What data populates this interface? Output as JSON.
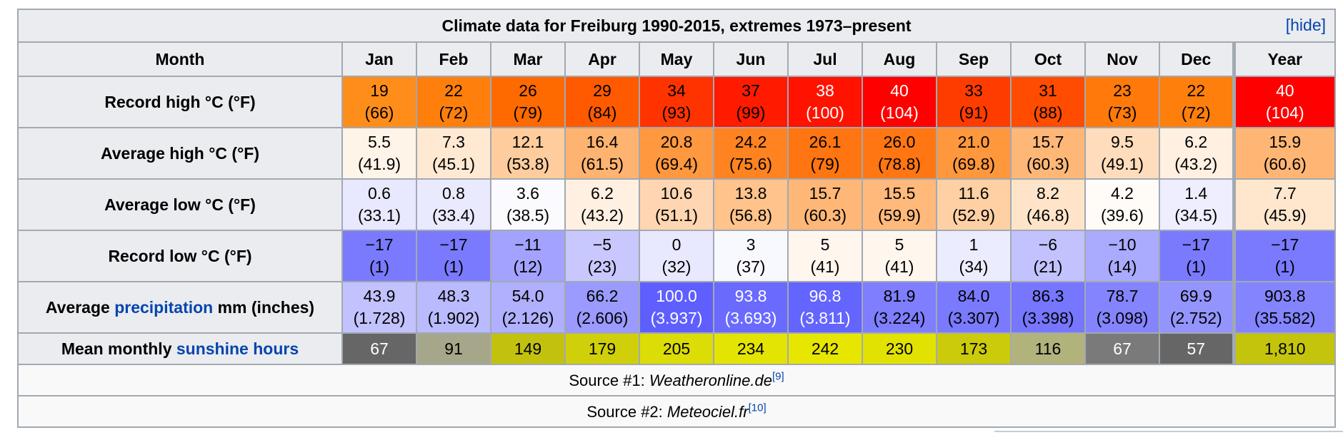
{
  "table": {
    "caption": "Climate data for Freiburg 1990-2015, extremes 1973–present",
    "hide_label": "hide",
    "month_header": "Month",
    "months": [
      "Jan",
      "Feb",
      "Mar",
      "Apr",
      "May",
      "Jun",
      "Jul",
      "Aug",
      "Sep",
      "Oct",
      "Nov",
      "Dec",
      "Year"
    ],
    "rows": [
      {
        "label": "Record high °C (°F)",
        "cells": [
          {
            "c": "19",
            "f": "(66)",
            "bg": "#ff8d1a",
            "fg": "#000000"
          },
          {
            "c": "22",
            "f": "(72)",
            "bg": "#ff7f0d",
            "fg": "#000000"
          },
          {
            "c": "26",
            "f": "(79)",
            "bg": "#ff6a00",
            "fg": "#000000"
          },
          {
            "c": "29",
            "f": "(84)",
            "bg": "#ff5a00",
            "fg": "#000000"
          },
          {
            "c": "34",
            "f": "(93)",
            "bg": "#ff3300",
            "fg": "#000000"
          },
          {
            "c": "37",
            "f": "(99)",
            "bg": "#ff1a00",
            "fg": "#000000"
          },
          {
            "c": "38",
            "f": "(100)",
            "bg": "#ff1200",
            "fg": "#ffffff"
          },
          {
            "c": "40",
            "f": "(104)",
            "bg": "#ff0000",
            "fg": "#ffffff"
          },
          {
            "c": "33",
            "f": "(91)",
            "bg": "#ff3c00",
            "fg": "#000000"
          },
          {
            "c": "31",
            "f": "(88)",
            "bg": "#ff4c00",
            "fg": "#000000"
          },
          {
            "c": "23",
            "f": "(73)",
            "bg": "#ff7a0a",
            "fg": "#000000"
          },
          {
            "c": "22",
            "f": "(72)",
            "bg": "#ff7f0d",
            "fg": "#000000"
          },
          {
            "c": "40",
            "f": "(104)",
            "bg": "#ff0000",
            "fg": "#ffffff"
          }
        ]
      },
      {
        "label": "Average high °C (°F)",
        "cells": [
          {
            "c": "5.5",
            "f": "(41.9)",
            "bg": "#fff4e8",
            "fg": "#000000"
          },
          {
            "c": "7.3",
            "f": "(45.1)",
            "bg": "#ffe9d2",
            "fg": "#000000"
          },
          {
            "c": "12.1",
            "f": "(53.8)",
            "bg": "#ffcd9d",
            "fg": "#000000"
          },
          {
            "c": "16.4",
            "f": "(61.5)",
            "bg": "#ffb370",
            "fg": "#000000"
          },
          {
            "c": "20.8",
            "f": "(69.4)",
            "bg": "#ff983f",
            "fg": "#000000"
          },
          {
            "c": "24.2",
            "f": "(75.6)",
            "bg": "#ff8320",
            "fg": "#000000"
          },
          {
            "c": "26.1",
            "f": "(79)",
            "bg": "#ff7511",
            "fg": "#000000"
          },
          {
            "c": "26.0",
            "f": "(78.8)",
            "bg": "#ff7612",
            "fg": "#000000"
          },
          {
            "c": "21.0",
            "f": "(69.8)",
            "bg": "#ff973d",
            "fg": "#000000"
          },
          {
            "c": "15.7",
            "f": "(60.3)",
            "bg": "#ffb778",
            "fg": "#000000"
          },
          {
            "c": "9.5",
            "f": "(49.1)",
            "bg": "#ffdcbc",
            "fg": "#000000"
          },
          {
            "c": "6.2",
            "f": "(43.2)",
            "bg": "#fff0e2",
            "fg": "#000000"
          },
          {
            "c": "15.9",
            "f": "(60.6)",
            "bg": "#ffb675",
            "fg": "#000000"
          }
        ]
      },
      {
        "label": "Average low °C (°F)",
        "cells": [
          {
            "c": "0.6",
            "f": "(33.1)",
            "bg": "#e8e8ff",
            "fg": "#000000"
          },
          {
            "c": "0.8",
            "f": "(33.4)",
            "bg": "#eaeaff",
            "fg": "#000000"
          },
          {
            "c": "3.6",
            "f": "(38.5)",
            "bg": "#fbfbff",
            "fg": "#000000"
          },
          {
            "c": "6.2",
            "f": "(43.2)",
            "bg": "#fff0e2",
            "fg": "#000000"
          },
          {
            "c": "10.6",
            "f": "(51.1)",
            "bg": "#ffd6b1",
            "fg": "#000000"
          },
          {
            "c": "13.8",
            "f": "(56.8)",
            "bg": "#ffc38b",
            "fg": "#000000"
          },
          {
            "c": "15.7",
            "f": "(60.3)",
            "bg": "#ffb778",
            "fg": "#000000"
          },
          {
            "c": "15.5",
            "f": "(59.9)",
            "bg": "#ffb97b",
            "fg": "#000000"
          },
          {
            "c": "11.6",
            "f": "(52.9)",
            "bg": "#ffd0a4",
            "fg": "#000000"
          },
          {
            "c": "8.2",
            "f": "(46.8)",
            "bg": "#ffe4c9",
            "fg": "#000000"
          },
          {
            "c": "4.2",
            "f": "(39.6)",
            "bg": "#fffbf7",
            "fg": "#000000"
          },
          {
            "c": "1.4",
            "f": "(34.5)",
            "bg": "#eeeeff",
            "fg": "#000000"
          },
          {
            "c": "7.7",
            "f": "(45.9)",
            "bg": "#ffe7cd",
            "fg": "#000000"
          }
        ]
      },
      {
        "label": "Record low °C (°F)",
        "cells": [
          {
            "c": "−17",
            "f": "(1)",
            "bg": "#7a7aff",
            "fg": "#000000"
          },
          {
            "c": "−17",
            "f": "(1)",
            "bg": "#7a7aff",
            "fg": "#000000"
          },
          {
            "c": "−11",
            "f": "(12)",
            "bg": "#a3a3ff",
            "fg": "#000000"
          },
          {
            "c": "−5",
            "f": "(23)",
            "bg": "#c8c8ff",
            "fg": "#000000"
          },
          {
            "c": "0",
            "f": "(32)",
            "bg": "#e8e8ff",
            "fg": "#000000"
          },
          {
            "c": "3",
            "f": "(37)",
            "bg": "#f8f8ff",
            "fg": "#000000"
          },
          {
            "c": "5",
            "f": "(41)",
            "bg": "#fff6ee",
            "fg": "#000000"
          },
          {
            "c": "5",
            "f": "(41)",
            "bg": "#fff6ee",
            "fg": "#000000"
          },
          {
            "c": "1",
            "f": "(34)",
            "bg": "#ececff",
            "fg": "#000000"
          },
          {
            "c": "−6",
            "f": "(21)",
            "bg": "#c2c2ff",
            "fg": "#000000"
          },
          {
            "c": "−10",
            "f": "(14)",
            "bg": "#aaaaff",
            "fg": "#000000"
          },
          {
            "c": "−17",
            "f": "(1)",
            "bg": "#7a7aff",
            "fg": "#000000"
          },
          {
            "c": "−17",
            "f": "(1)",
            "bg": "#7a7aff",
            "fg": "#000000"
          }
        ]
      },
      {
        "label_pre": "Average ",
        "label_link": "precipitation",
        "label_post": " mm (inches)",
        "cells": [
          {
            "c": "43.9",
            "f": "(1.728)",
            "bg": "#c2c2ff",
            "fg": "#000000"
          },
          {
            "c": "48.3",
            "f": "(1.902)",
            "bg": "#babaff",
            "fg": "#000000"
          },
          {
            "c": "54.0",
            "f": "(2.126)",
            "bg": "#b0b0ff",
            "fg": "#000000"
          },
          {
            "c": "66.2",
            "f": "(2.606)",
            "bg": "#9a9aff",
            "fg": "#000000"
          },
          {
            "c": "100.0",
            "f": "(3.937)",
            "bg": "#5f5fff",
            "fg": "#ffffff"
          },
          {
            "c": "93.8",
            "f": "(3.693)",
            "bg": "#6a6aff",
            "fg": "#ffffff"
          },
          {
            "c": "96.8",
            "f": "(3.811)",
            "bg": "#6464ff",
            "fg": "#ffffff"
          },
          {
            "c": "81.9",
            "f": "(3.224)",
            "bg": "#7e7eff",
            "fg": "#000000"
          },
          {
            "c": "84.0",
            "f": "(3.307)",
            "bg": "#7a7aff",
            "fg": "#000000"
          },
          {
            "c": "86.3",
            "f": "(3.398)",
            "bg": "#7676ff",
            "fg": "#000000"
          },
          {
            "c": "78.7",
            "f": "(3.098)",
            "bg": "#8484ff",
            "fg": "#000000"
          },
          {
            "c": "69.9",
            "f": "(2.752)",
            "bg": "#9494ff",
            "fg": "#000000"
          },
          {
            "c": "903.8",
            "f": "(35.582)",
            "bg": "#8484ff",
            "fg": "#000000"
          }
        ]
      }
    ],
    "sunshine": {
      "label_pre": "Mean monthly ",
      "label_link": "sunshine hours",
      "cells": [
        {
          "v": "67",
          "bg": "#666666",
          "fg": "#ffffff"
        },
        {
          "v": "91",
          "bg": "#a6a68a",
          "fg": "#000000"
        },
        {
          "v": "149",
          "bg": "#c2c20e",
          "fg": "#000000"
        },
        {
          "v": "179",
          "bg": "#d0d00a",
          "fg": "#000000"
        },
        {
          "v": "205",
          "bg": "#dcdc06",
          "fg": "#000000"
        },
        {
          "v": "234",
          "bg": "#e4e402",
          "fg": "#000000"
        },
        {
          "v": "242",
          "bg": "#e6e600",
          "fg": "#000000"
        },
        {
          "v": "230",
          "bg": "#e2e202",
          "fg": "#000000"
        },
        {
          "v": "173",
          "bg": "#cbcb0b",
          "fg": "#000000"
        },
        {
          "v": "116",
          "bg": "#b2b27d",
          "fg": "#000000"
        },
        {
          "v": "67",
          "bg": "#7a7a7a",
          "fg": "#ffffff"
        },
        {
          "v": "57",
          "bg": "#666666",
          "fg": "#ffffff"
        },
        {
          "v": "1,810",
          "bg": "#c4c40c",
          "fg": "#000000"
        }
      ]
    },
    "sources": [
      {
        "prefix": "Source #1: ",
        "name": "Weatheronline.de",
        "ref": "[9]"
      },
      {
        "prefix": "Source #2: ",
        "name": "Meteociel.fr",
        "ref": "[10]"
      }
    ]
  }
}
